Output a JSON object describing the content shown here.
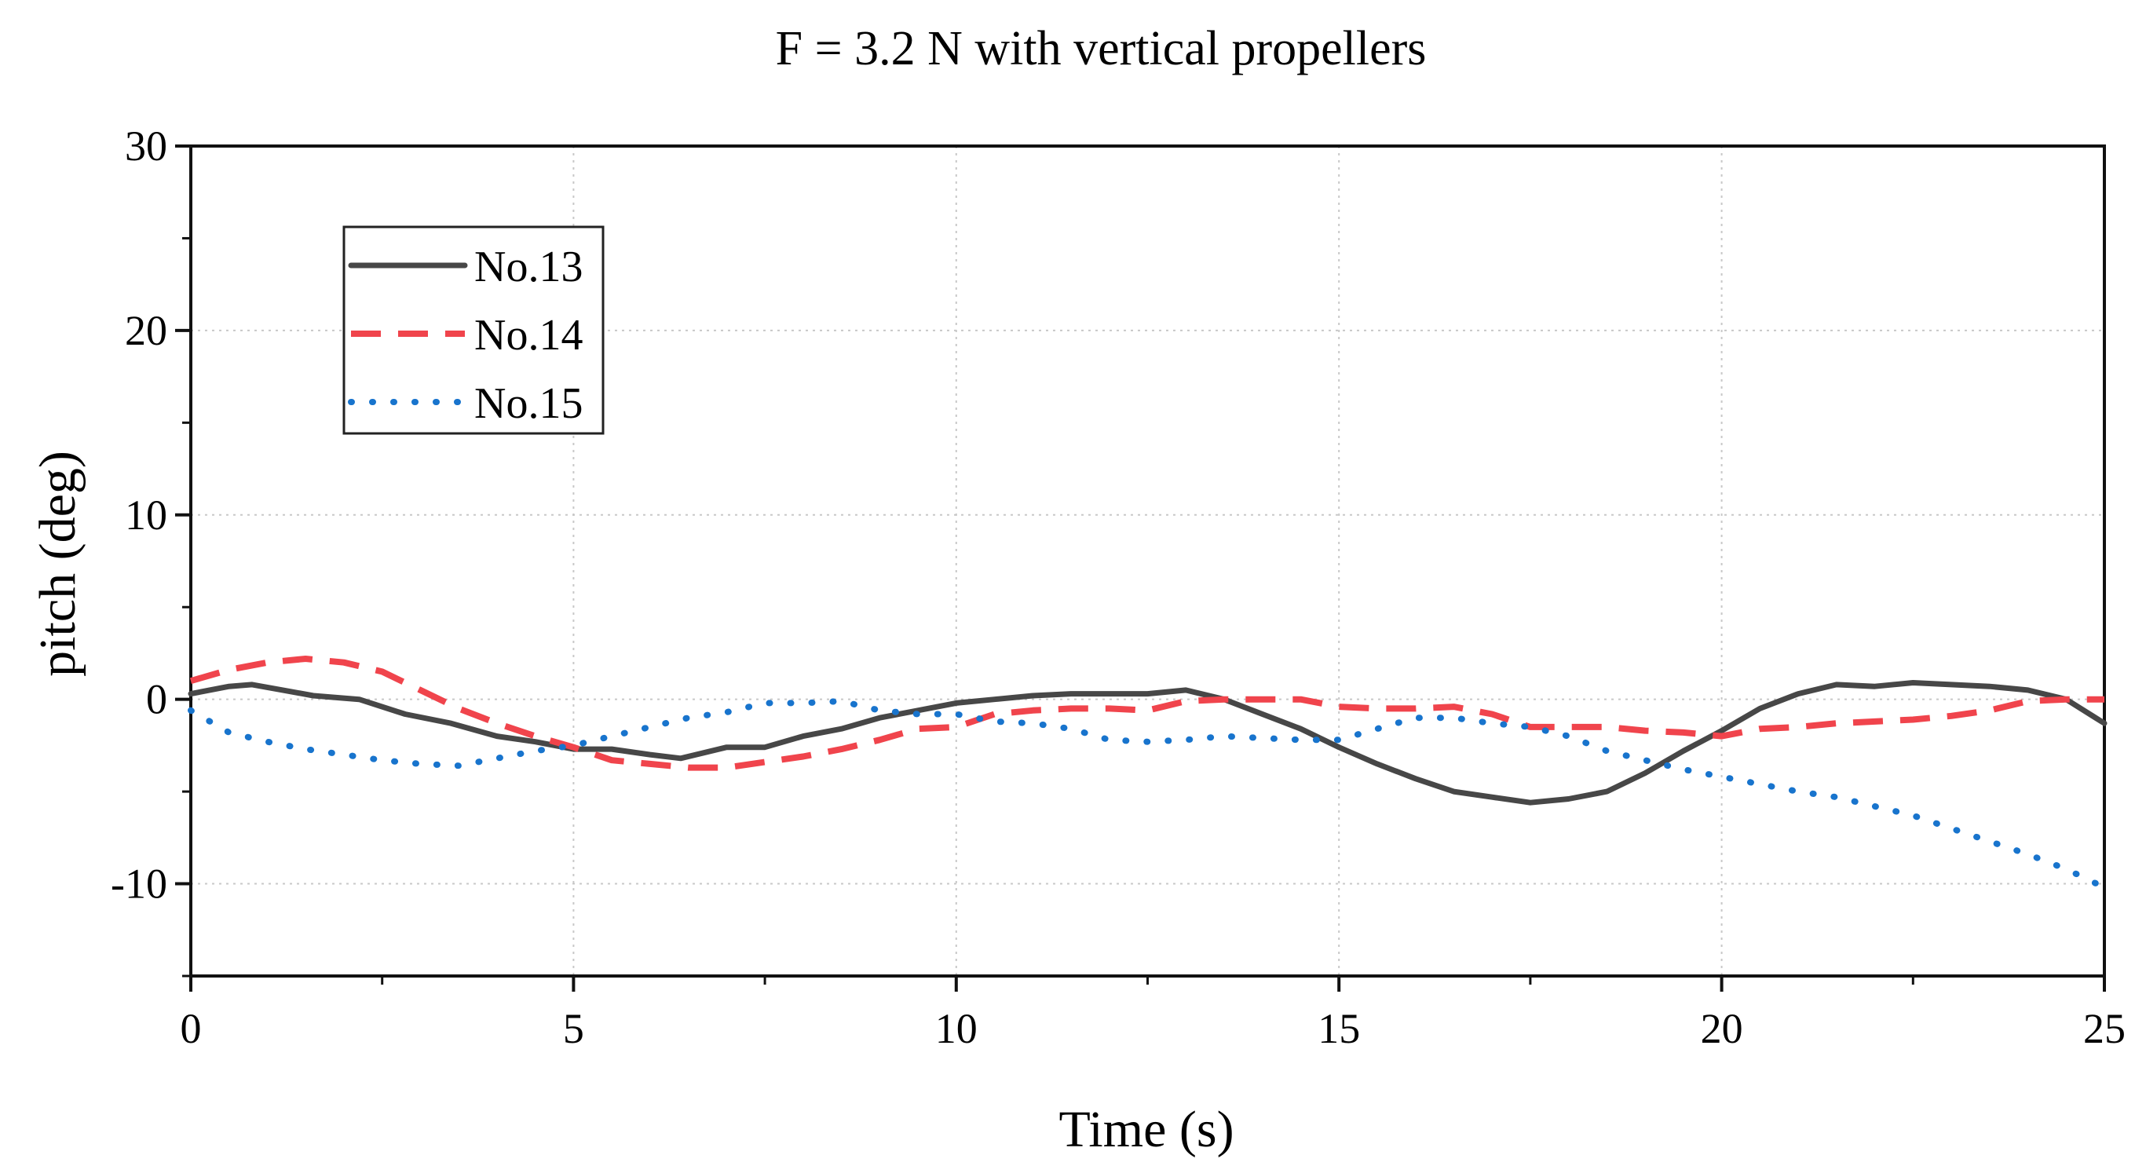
{
  "chart_data": {
    "type": "line",
    "title": "F = 3.2 N with vertical propellers",
    "xlabel": "Time (s)",
    "ylabel": "pitch (deg)",
    "xlim": [
      0,
      25
    ],
    "ylim": [
      -15,
      30
    ],
    "x_ticks": [
      0,
      5,
      10,
      15,
      20,
      25
    ],
    "y_ticks": [
      -10,
      0,
      10,
      20,
      30
    ],
    "x_tick_labels": [
      "0",
      "5",
      "10",
      "15",
      "20",
      "25"
    ],
    "y_tick_labels": [
      "-10",
      "0",
      "10",
      "20",
      "30"
    ],
    "grid": true,
    "legend_position": "top-left",
    "series": [
      {
        "name": "No.13",
        "color": "#474747",
        "style": "solid",
        "x": [
          0,
          0.5,
          0.8,
          1.2,
          1.6,
          2.2,
          2.8,
          3.4,
          4,
          4.5,
          5,
          5.5,
          6,
          6.4,
          7,
          7.5,
          8,
          8.5,
          9,
          9.5,
          10,
          10.5,
          11,
          11.5,
          12,
          12.5,
          13,
          13.5,
          14,
          14.5,
          15,
          15.5,
          16,
          16.5,
          17,
          17.5,
          18,
          18.5,
          19,
          19.5,
          20,
          20.5,
          21,
          21.5,
          22,
          22.5,
          23,
          23.5,
          24,
          24.5,
          25
        ],
        "values": [
          0.3,
          0.7,
          0.8,
          0.5,
          0.2,
          0.0,
          -0.8,
          -1.3,
          -2.0,
          -2.3,
          -2.7,
          -2.7,
          -3.0,
          -3.2,
          -2.6,
          -2.6,
          -2.0,
          -1.6,
          -1.0,
          -0.6,
          -0.2,
          0.0,
          0.2,
          0.3,
          0.3,
          0.3,
          0.5,
          0.0,
          -0.8,
          -1.6,
          -2.6,
          -3.5,
          -4.3,
          -5.0,
          -5.3,
          -5.6,
          -5.4,
          -5.0,
          -4.0,
          -2.8,
          -1.7,
          -0.5,
          0.3,
          0.8,
          0.7,
          0.9,
          0.8,
          0.7,
          0.5,
          0.0,
          -1.3
        ]
      },
      {
        "name": "No.14",
        "color": "#f0444c",
        "style": "dashed",
        "x": [
          0,
          0.5,
          1,
          1.5,
          2,
          2.5,
          3,
          3.5,
          4,
          4.5,
          5,
          5.5,
          6,
          6.5,
          7,
          7.5,
          8,
          8.5,
          9,
          9.5,
          10,
          10.5,
          11,
          11.5,
          12,
          12.5,
          13,
          13.5,
          14,
          14.5,
          15,
          15.5,
          16,
          16.5,
          17,
          17.5,
          18,
          18.5,
          19,
          19.5,
          20,
          20.5,
          21,
          21.5,
          22,
          22.5,
          23,
          23.5,
          24,
          24.5,
          25
        ],
        "values": [
          1.0,
          1.6,
          2.0,
          2.2,
          2.0,
          1.5,
          0.5,
          -0.5,
          -1.3,
          -2.0,
          -2.6,
          -3.3,
          -3.5,
          -3.7,
          -3.7,
          -3.4,
          -3.1,
          -2.7,
          -2.2,
          -1.6,
          -1.5,
          -0.8,
          -0.6,
          -0.5,
          -0.5,
          -0.6,
          -0.1,
          0.0,
          0.0,
          0.0,
          -0.4,
          -0.5,
          -0.5,
          -0.4,
          -0.8,
          -1.5,
          -1.5,
          -1.5,
          -1.7,
          -1.8,
          -2.0,
          -1.6,
          -1.5,
          -1.3,
          -1.2,
          -1.1,
          -0.9,
          -0.6,
          -0.1,
          0.0,
          0.0
        ]
      },
      {
        "name": "No.15",
        "color": "#1874cd",
        "style": "dotted",
        "x": [
          0,
          0.5,
          1,
          1.5,
          2,
          2.5,
          3,
          3.5,
          4,
          4.5,
          5,
          5.5,
          6,
          6.5,
          7,
          7.5,
          8,
          8.5,
          9,
          9.5,
          10,
          10.5,
          11,
          11.5,
          12,
          12.5,
          13,
          13.5,
          14,
          14.5,
          15,
          15.5,
          16,
          16.5,
          17,
          17.5,
          18,
          18.5,
          19,
          19.5,
          20,
          20.5,
          21,
          21.5,
          22,
          22.5,
          23,
          23.5,
          24,
          24.5,
          25
        ],
        "values": [
          -0.6,
          -1.8,
          -2.3,
          -2.7,
          -3.0,
          -3.3,
          -3.5,
          -3.6,
          -3.2,
          -2.8,
          -2.5,
          -2.0,
          -1.5,
          -1.0,
          -0.7,
          -0.2,
          -0.2,
          -0.1,
          -0.6,
          -0.8,
          -0.8,
          -1.2,
          -1.3,
          -1.6,
          -2.2,
          -2.3,
          -2.2,
          -2.0,
          -2.1,
          -2.2,
          -2.2,
          -1.6,
          -1.0,
          -1.0,
          -1.3,
          -1.5,
          -2.0,
          -2.8,
          -3.3,
          -3.8,
          -4.2,
          -4.6,
          -5.0,
          -5.3,
          -5.8,
          -6.3,
          -7.0,
          -7.7,
          -8.4,
          -9.2,
          -10.2
        ]
      }
    ]
  }
}
